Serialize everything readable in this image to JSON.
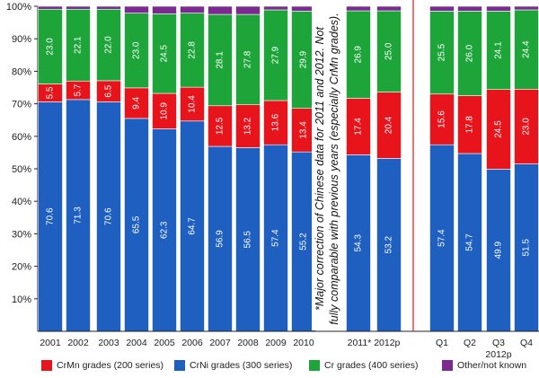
{
  "chart_data": {
    "type": "bar",
    "stacked": true,
    "ylim": [
      0,
      100
    ],
    "yticks": [
      "10%",
      "20%",
      "30%",
      "40%",
      "50%",
      "60%",
      "70%",
      "80%",
      "90%",
      "100%"
    ],
    "categories": [
      "2001",
      "2002",
      "2003",
      "2004",
      "2005",
      "2006",
      "2007",
      "2008",
      "2009",
      "2010",
      "2011*",
      "2012p",
      "Q1",
      "Q2",
      "Q3",
      "Q4"
    ],
    "bottom_labels": [
      "2001",
      "2002",
      "2003",
      "2004",
      "2005",
      "2006",
      "2007",
      "2008",
      "2009",
      "2010",
      "2011* 2012p",
      "Q1",
      "Q2",
      "Q3",
      "Q4"
    ],
    "sub_label": "2012p",
    "series": [
      {
        "name": "CrNi grades (300 series)",
        "color": "#1f5fbf",
        "values": [
          70.6,
          71.3,
          70.6,
          65.5,
          62.3,
          64.7,
          56.9,
          56.5,
          57.4,
          55.2,
          54.3,
          53.2,
          57.4,
          54.7,
          49.9,
          51.5
        ]
      },
      {
        "name": "CrMn grades (200 series)",
        "color": "#e8141c",
        "values": [
          5.5,
          5.7,
          6.5,
          9.4,
          10.9,
          10.4,
          12.5,
          13.2,
          13.6,
          13.4,
          17.4,
          20.4,
          15.6,
          17.8,
          24.5,
          23.0
        ]
      },
      {
        "name": "Cr grades (400 series)",
        "color": "#1ea53a",
        "values": [
          23.0,
          22.1,
          22.0,
          23.0,
          24.5,
          22.8,
          28.1,
          27.8,
          27.9,
          29.9,
          26.9,
          25.0,
          25.5,
          26.0,
          24.1,
          24.4
        ]
      },
      {
        "name": "Other/not known",
        "color": "#7b2a90",
        "values": [
          0.9,
          0.9,
          0.9,
          2.1,
          2.3,
          2.1,
          2.5,
          2.5,
          1.1,
          1.5,
          1.4,
          1.4,
          1.5,
          1.5,
          1.5,
          1.1
        ]
      }
    ],
    "annotation": "*Major correction of Chinese data for 2011 and 2012. Not fully comparable with previous years (especially CrMn grades).",
    "legend": {
      "placement": "bottom",
      "entries": [
        {
          "label": "CrMn grades (200 series)",
          "color": "#e8141c"
        },
        {
          "label": "CrNi grades (300 series)",
          "color": "#1f5fbf"
        },
        {
          "label": "Cr grades (400 series)",
          "color": "#1ea53a"
        },
        {
          "label": "Other/not known",
          "color": "#7b2a90"
        }
      ]
    },
    "separator_color": "#e8141c",
    "grid": false
  }
}
